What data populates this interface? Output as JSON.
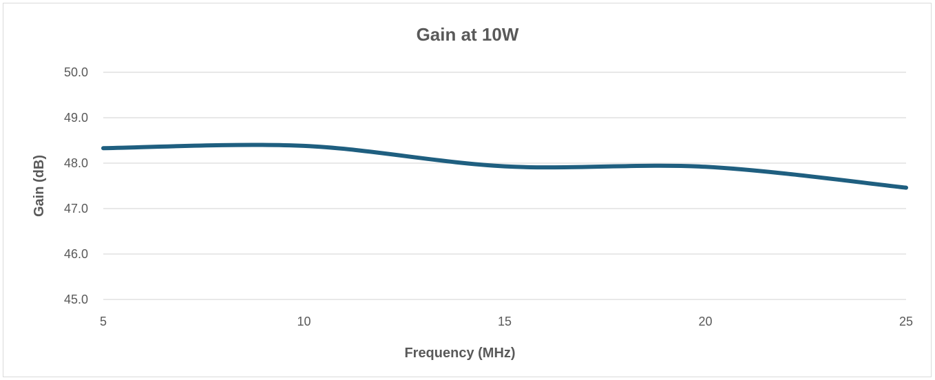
{
  "chart_data": {
    "type": "line",
    "title": "Gain at 10W",
    "xlabel": "Frequency (MHz)",
    "ylabel": "Gain (dB)",
    "xlim": [
      5,
      25
    ],
    "ylim": [
      45.0,
      50.0
    ],
    "x_ticks": [
      "5",
      "10",
      "15",
      "20",
      "25"
    ],
    "y_ticks": [
      "45.0",
      "46.0",
      "47.0",
      "48.0",
      "49.0",
      "50.0"
    ],
    "grid": "horizontal",
    "legend": "none",
    "smooth": true,
    "series": [
      {
        "color": "#1f5f80",
        "x": [
          5,
          10,
          15,
          20,
          25
        ],
        "y": [
          48.33,
          48.38,
          47.93,
          47.92,
          47.46
        ]
      }
    ]
  }
}
